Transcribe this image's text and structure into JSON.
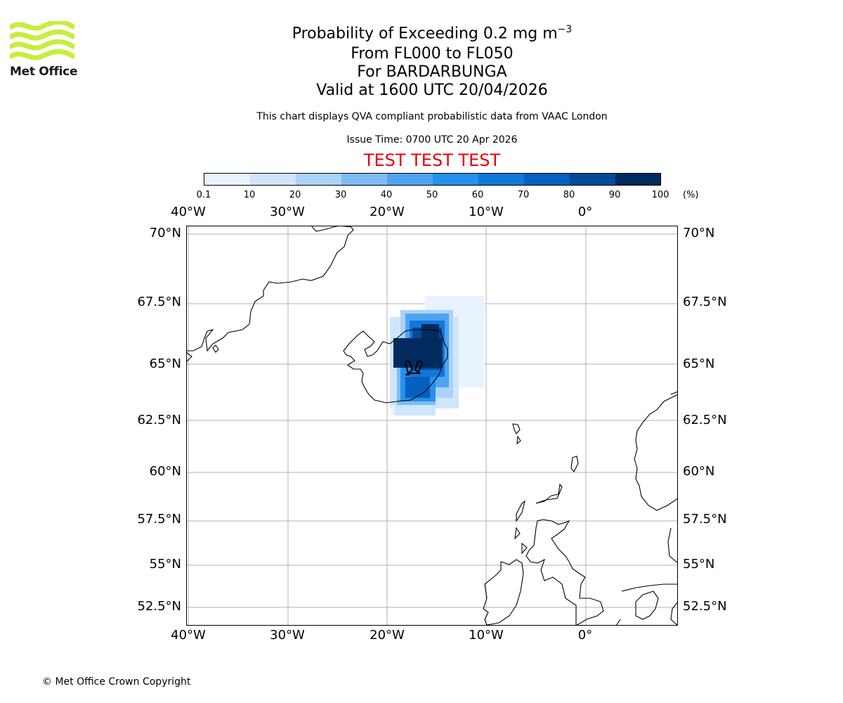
{
  "logo": {
    "text": "Met Office",
    "wave_color": "#c6ef3c"
  },
  "header": {
    "title_main": "Probability of Exceeding 0.2 mg m",
    "title_sup": "−3",
    "levels": "From FL000 to FL050",
    "volcano": "For BARDARBUNGA",
    "valid": "Valid at 1600 UTC 20/04/2026",
    "disclaimer": "This chart displays QVA compliant probabilistic data from VAAC London",
    "issue_time": "Issue Time: 0700 UTC 20 Apr 2026",
    "test_banner": "TEST TEST TEST",
    "test_color": "#e8000b"
  },
  "colorbar": {
    "ticks": [
      "0.1",
      "10",
      "20",
      "30",
      "40",
      "50",
      "60",
      "70",
      "80",
      "90",
      "100"
    ],
    "unit": "(%)",
    "colors": [
      "#e8f3fd",
      "#cfe5fb",
      "#abd2f8",
      "#7fbcf5",
      "#4ea4f2",
      "#2690ec",
      "#0f78da",
      "#0660c0",
      "#034b9a",
      "#022a5e"
    ]
  },
  "map": {
    "lon_labels": [
      "40°W",
      "30°W",
      "20°W",
      "10°W",
      "0°"
    ],
    "lat_labels": [
      "70°N",
      "67.5°N",
      "65°N",
      "62.5°N",
      "60°N",
      "57.5°N",
      "55°N",
      "52.5°N"
    ],
    "volcano_symbol": "volcano-marker"
  },
  "footer": {
    "copyright": "© Met Office Crown Copyright"
  }
}
